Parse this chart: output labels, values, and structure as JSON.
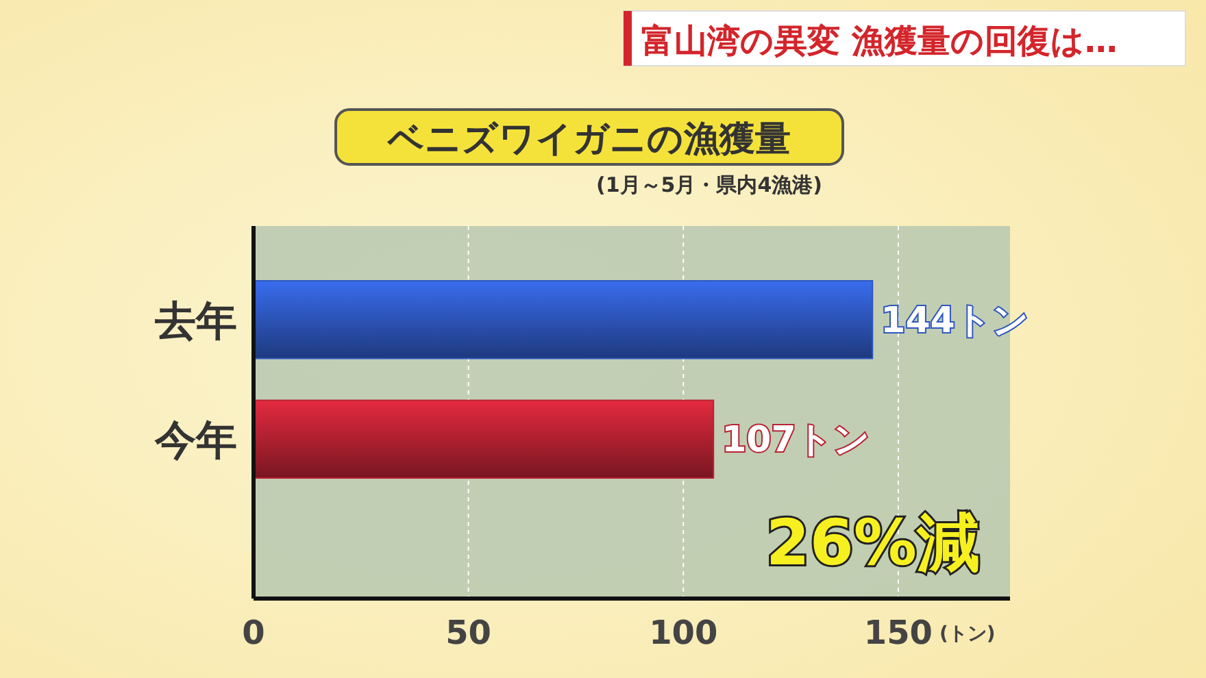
{
  "chart_data": {
    "type": "bar",
    "orientation": "horizontal",
    "title": "ベニズワイガニの漁獲量",
    "subtitle": "(1月～5月・県内4漁港)",
    "xlabel": "(トン)",
    "categories": [
      "去年",
      "今年"
    ],
    "values": [
      144,
      107
    ],
    "colors": [
      "#2e57c0",
      "#b82233"
    ],
    "value_labels": [
      "144トン",
      "107トン"
    ],
    "xlim": [
      0,
      176
    ],
    "xticks": [
      0,
      50,
      100,
      150
    ],
    "grid": "x",
    "annotations": [
      "富山湾の異変 漁獲量の回復は…",
      "26%減"
    ]
  }
}
